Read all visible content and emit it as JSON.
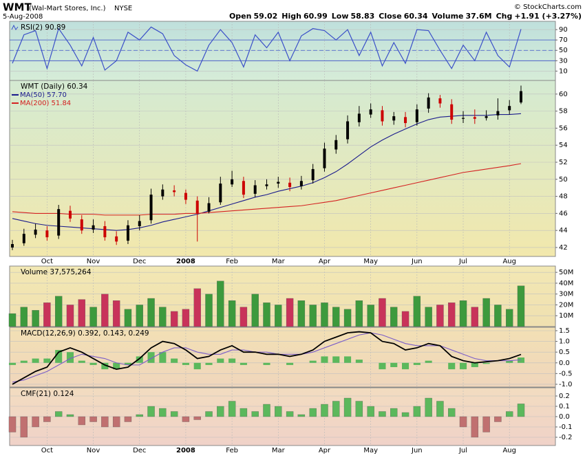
{
  "header": {
    "symbol": "WMT",
    "company": "(Wal-Mart Stores, Inc.)",
    "exchange": "NYSE",
    "date": "5-Aug-2008",
    "credit": "© StockCharts.com",
    "stats": [
      {
        "label": "Open",
        "value": 59.02
      },
      {
        "label": "High",
        "value": 60.99
      },
      {
        "label": "Low",
        "value": 58.83
      },
      {
        "label": "Close",
        "value": 60.34
      },
      {
        "label": "Volume",
        "value": "37.6M"
      },
      {
        "label": "Chg",
        "value": "+1.91 (+3.27%)"
      }
    ]
  },
  "chart_data": [
    {
      "type": "line",
      "title": "RSI(2) 90.89",
      "ylim": [
        -8,
        106
      ],
      "yticks": [
        90,
        70,
        50,
        30,
        10
      ],
      "levels": [
        30,
        50,
        70
      ],
      "series": [
        {
          "color": "#3b50c8",
          "values": [
            25,
            80,
            88,
            15,
            92,
            60,
            20,
            75,
            12,
            30,
            85,
            70,
            95,
            82,
            40,
            22,
            10,
            60,
            90,
            65,
            18,
            80,
            55,
            85,
            30,
            78,
            92,
            88,
            70,
            90,
            40,
            85,
            20,
            65,
            25,
            90,
            88,
            50,
            15,
            60,
            30,
            85,
            40,
            18,
            90.89
          ]
        }
      ]
    },
    {
      "type": "candlestick",
      "ylim": [
        40.95,
        61.6
      ],
      "yticks": [
        42,
        44,
        46,
        48,
        50,
        52,
        54,
        56,
        58,
        60
      ],
      "up_color": "#000000",
      "down_color": "#cc0000",
      "categories": [
        null,
        null,
        null,
        "Oct",
        null,
        null,
        null,
        "Nov",
        null,
        null,
        null,
        "Dec",
        null,
        null,
        null,
        "2008",
        null,
        null,
        null,
        "Feb",
        null,
        null,
        null,
        "Mar",
        null,
        null,
        null,
        "Apr",
        null,
        null,
        null,
        "May",
        null,
        null,
        null,
        "Jun",
        null,
        null,
        null,
        "Jul",
        null,
        null,
        null,
        "Aug",
        null
      ],
      "name": "WMT (Daily) 60.34",
      "open": [
        42.0,
        42.5,
        43.5,
        44.0,
        43.4,
        46.3,
        45.3,
        44.1,
        44.5,
        43.3,
        42.8,
        44.5,
        45.2,
        48.0,
        48.7,
        48.4,
        47.5,
        46.2,
        47.3,
        49.4,
        49.8,
        48.3,
        49.2,
        49.5,
        49.6,
        49.2,
        49.9,
        51.3,
        53.5,
        54.7,
        56.7,
        57.6,
        58.1,
        56.9,
        57.3,
        56.7,
        58.3,
        59.5,
        58.8,
        57.1,
        57.3,
        57.2,
        57.5,
        58.1,
        59.02
      ],
      "high": [
        42.9,
        44.2,
        44.8,
        44.5,
        47.0,
        46.9,
        45.8,
        45.3,
        45.1,
        43.9,
        45.2,
        45.8,
        48.9,
        49.4,
        49.3,
        48.8,
        48.0,
        47.9,
        50.3,
        51.0,
        50.3,
        49.9,
        50.0,
        50.3,
        50.2,
        50.4,
        51.8,
        54.3,
        55.2,
        57.5,
        58.6,
        58.9,
        58.6,
        57.9,
        57.9,
        58.8,
        60.1,
        59.9,
        59.4,
        58.0,
        58.2,
        58.1,
        59.5,
        59.3,
        60.99
      ],
      "low": [
        41.7,
        42.2,
        43.1,
        42.8,
        43.0,
        45.0,
        43.6,
        43.7,
        42.8,
        42.3,
        42.4,
        44.0,
        44.8,
        47.6,
        48.0,
        47.1,
        42.7,
        46.0,
        47.0,
        49.1,
        47.8,
        47.9,
        48.8,
        49.0,
        48.6,
        48.8,
        49.5,
        50.9,
        53.0,
        54.2,
        56.2,
        57.2,
        56.3,
        56.4,
        56.1,
        56.3,
        57.8,
        58.4,
        56.5,
        56.6,
        56.5,
        56.9,
        57.0,
        57.6,
        58.83
      ],
      "close": [
        42.4,
        43.6,
        44.1,
        43.2,
        46.5,
        45.4,
        44.0,
        44.6,
        43.2,
        42.7,
        44.6,
        45.1,
        48.2,
        48.8,
        48.5,
        47.6,
        46.0,
        47.2,
        49.5,
        50.0,
        48.2,
        49.3,
        49.4,
        49.7,
        49.1,
        49.8,
        51.2,
        53.6,
        54.6,
        56.8,
        57.7,
        58.2,
        56.8,
        57.4,
        56.6,
        58.2,
        59.6,
        58.9,
        57.0,
        57.2,
        57.1,
        57.4,
        58.0,
        58.6,
        60.34
      ],
      "series": [
        {
          "name": "MA(50) 57.70",
          "color": "#1a1a8c",
          "values": [
            45.4,
            45.1,
            44.8,
            44.6,
            44.5,
            44.4,
            44.3,
            44.2,
            44.1,
            44.0,
            44.1,
            44.3,
            44.6,
            45.0,
            45.3,
            45.6,
            45.9,
            46.3,
            46.7,
            47.1,
            47.5,
            47.9,
            48.2,
            48.6,
            48.9,
            49.2,
            49.6,
            50.2,
            50.9,
            51.8,
            52.8,
            53.8,
            54.6,
            55.3,
            55.9,
            56.5,
            57.0,
            57.3,
            57.4,
            57.5,
            57.5,
            57.5,
            57.6,
            57.6,
            57.7
          ]
        },
        {
          "name": "MA(200) 51.84",
          "color": "#d42020",
          "values": [
            46.2,
            46.1,
            46.0,
            46.0,
            46.0,
            45.9,
            45.9,
            45.9,
            45.8,
            45.8,
            45.8,
            45.8,
            45.9,
            45.9,
            45.9,
            46.0,
            46.0,
            46.1,
            46.2,
            46.3,
            46.4,
            46.5,
            46.6,
            46.7,
            46.8,
            46.9,
            47.1,
            47.3,
            47.5,
            47.8,
            48.1,
            48.4,
            48.7,
            49.0,
            49.3,
            49.6,
            49.9,
            50.2,
            50.5,
            50.8,
            51.0,
            51.2,
            51.4,
            51.6,
            51.84
          ]
        }
      ]
    },
    {
      "type": "bar",
      "title": "Volume 37,575,264",
      "ylim": [
        0,
        55.8
      ],
      "color": "#3d9a3d",
      "down_color": "#c8335a",
      "yticks": [
        {
          "value": 50,
          "label": "50M"
        },
        {
          "value": 40,
          "label": "40M"
        },
        {
          "value": 30,
          "label": "30M"
        },
        {
          "value": 20,
          "label": "20M"
        },
        {
          "value": 10,
          "label": "10M"
        }
      ],
      "values": [
        12,
        18,
        15,
        22,
        28,
        20,
        25,
        18,
        30,
        24,
        16,
        20,
        26,
        18,
        14,
        16,
        35,
        30,
        42,
        24,
        18,
        30,
        22,
        20,
        26,
        24,
        20,
        22,
        18,
        16,
        24,
        20,
        26,
        18,
        14,
        28,
        18,
        20,
        22,
        24,
        18,
        26,
        20,
        16,
        37.6
      ]
    },
    {
      "type": "combo",
      "title": "MACD(12,26,9) 0.392, 0.143, 0.249",
      "ylim": [
        -1.13,
        1.66
      ],
      "yticks": [
        1.5,
        {
          "value": 1,
          "label": "1.0"
        },
        0.5,
        {
          "value": 0,
          "label": "0.0"
        },
        -0.5,
        {
          "value": -1,
          "label": "-1.0"
        }
      ],
      "series": [
        {
          "style": "bar",
          "color": "#5cb85c",
          "values": [
            -0.1,
            0.1,
            0.2,
            0.2,
            0.6,
            0.5,
            0.1,
            -0.1,
            -0.3,
            -0.3,
            -0.1,
            0.3,
            0.5,
            0.5,
            0.2,
            -0.1,
            -0.3,
            -0.1,
            0.2,
            0.2,
            -0.1,
            0.0,
            -0.1,
            0.0,
            -0.1,
            0.0,
            0.1,
            0.3,
            0.3,
            0.3,
            0.15,
            0.0,
            -0.3,
            -0.2,
            -0.3,
            -0.1,
            0.1,
            0.0,
            -0.3,
            -0.3,
            -0.2,
            -0.05,
            0.0,
            0.1,
            0.249
          ]
        },
        {
          "style": "line",
          "color": "#7a5cc8",
          "values": [
            -0.9,
            -0.8,
            -0.6,
            -0.4,
            -0.1,
            0.2,
            0.4,
            0.3,
            0.2,
            0.0,
            -0.1,
            -0.1,
            0.2,
            0.5,
            0.7,
            0.7,
            0.5,
            0.4,
            0.4,
            0.6,
            0.6,
            0.5,
            0.5,
            0.4,
            0.4,
            0.4,
            0.5,
            0.7,
            0.9,
            1.1,
            1.3,
            1.4,
            1.3,
            1.1,
            0.9,
            0.8,
            0.8,
            0.8,
            0.6,
            0.4,
            0.2,
            0.1,
            0.1,
            0.1,
            0.143
          ]
        },
        {
          "style": "line",
          "color": "#000000",
          "values": [
            -1.0,
            -0.7,
            -0.4,
            -0.2,
            0.5,
            0.7,
            0.5,
            0.2,
            -0.1,
            -0.3,
            -0.2,
            0.2,
            0.7,
            1.0,
            0.9,
            0.6,
            0.2,
            0.3,
            0.6,
            0.8,
            0.5,
            0.5,
            0.4,
            0.4,
            0.3,
            0.4,
            0.6,
            1.0,
            1.2,
            1.4,
            1.45,
            1.4,
            1.0,
            0.9,
            0.6,
            0.7,
            0.9,
            0.8,
            0.3,
            0.1,
            0.0,
            0.05,
            0.1,
            0.2,
            0.392
          ]
        }
      ]
    },
    {
      "type": "bar",
      "title": "CMF(21) 0.124",
      "ylim": [
        -0.28,
        0.28
      ],
      "color": "#5cb85c",
      "negative_color": "#c07070",
      "yticks": [
        0.2,
        0.1,
        {
          "value": 0,
          "label": "0.0"
        },
        -0.1,
        -0.2
      ],
      "categories": [
        null,
        null,
        null,
        "Oct",
        null,
        null,
        null,
        "Nov",
        null,
        null,
        null,
        "Dec",
        null,
        null,
        null,
        "2008",
        null,
        null,
        null,
        "Feb",
        null,
        null,
        null,
        "Mar",
        null,
        null,
        null,
        "Apr",
        null,
        null,
        null,
        "May",
        null,
        null,
        null,
        "Jun",
        null,
        null,
        null,
        "Jul",
        null,
        null,
        null,
        "Aug",
        null
      ],
      "values": [
        -0.15,
        -0.2,
        -0.1,
        -0.05,
        0.05,
        0.02,
        -0.08,
        -0.05,
        -0.1,
        -0.1,
        -0.05,
        0.02,
        0.1,
        0.08,
        0.05,
        -0.05,
        -0.03,
        0.05,
        0.1,
        0.15,
        0.08,
        0.05,
        0.12,
        0.1,
        0.05,
        0.02,
        0.08,
        0.12,
        0.15,
        0.18,
        0.15,
        0.1,
        0.05,
        0.08,
        0.04,
        0.1,
        0.18,
        0.15,
        0.08,
        -0.1,
        -0.2,
        -0.15,
        -0.05,
        0.05,
        0.124
      ]
    }
  ]
}
